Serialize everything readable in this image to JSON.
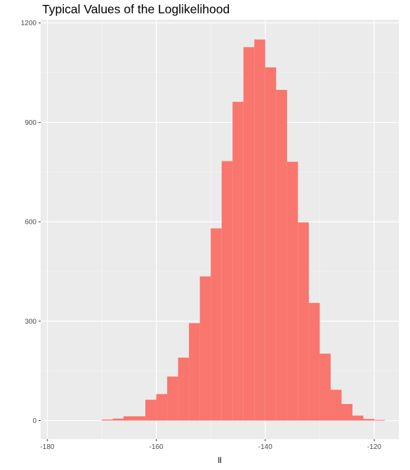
{
  "chart_data": {
    "type": "histogram",
    "title": "Typical Values of the Loglikelihood",
    "xlabel": "ll",
    "ylabel": "",
    "xlim": [
      -181.2,
      -115.5
    ],
    "ylim": [
      -56,
      1210
    ],
    "x_ticks": [
      -180,
      -160,
      -140,
      -120
    ],
    "x_tick_labels": [
      "-180",
      "-160",
      "-140",
      "-120"
    ],
    "y_ticks": [
      0,
      300,
      600,
      900,
      1200
    ],
    "y_tick_labels": [
      "0",
      "300",
      "600",
      "900",
      "1200"
    ],
    "grid": true,
    "bin_width": 2,
    "bins": [
      {
        "x0": -170,
        "x1": -168,
        "count": 3
      },
      {
        "x0": -168,
        "x1": -166,
        "count": 6
      },
      {
        "x0": -166,
        "x1": -164,
        "count": 13
      },
      {
        "x0": -164,
        "x1": -162,
        "count": 13
      },
      {
        "x0": -162,
        "x1": -160,
        "count": 63
      },
      {
        "x0": -160,
        "x1": -158,
        "count": 80
      },
      {
        "x0": -158,
        "x1": -156,
        "count": 133
      },
      {
        "x0": -156,
        "x1": -154,
        "count": 190
      },
      {
        "x0": -154,
        "x1": -152,
        "count": 294
      },
      {
        "x0": -152,
        "x1": -150,
        "count": 435
      },
      {
        "x0": -150,
        "x1": -148,
        "count": 580
      },
      {
        "x0": -148,
        "x1": -146,
        "count": 783
      },
      {
        "x0": -146,
        "x1": -144,
        "count": 962
      },
      {
        "x0": -144,
        "x1": -142,
        "count": 1127
      },
      {
        "x0": -142,
        "x1": -140,
        "count": 1150
      },
      {
        "x0": -140,
        "x1": -138,
        "count": 1066
      },
      {
        "x0": -138,
        "x1": -136,
        "count": 998
      },
      {
        "x0": -136,
        "x1": -134,
        "count": 781
      },
      {
        "x0": -134,
        "x1": -132,
        "count": 598
      },
      {
        "x0": -132,
        "x1": -130,
        "count": 355
      },
      {
        "x0": -130,
        "x1": -128,
        "count": 202
      },
      {
        "x0": -128,
        "x1": -126,
        "count": 93
      },
      {
        "x0": -126,
        "x1": -124,
        "count": 50
      },
      {
        "x0": -124,
        "x1": -122,
        "count": 15
      },
      {
        "x0": -122,
        "x1": -120,
        "count": 5
      },
      {
        "x0": -120,
        "x1": -118,
        "count": 2
      }
    ],
    "colors": {
      "bar": "#F8766D",
      "panel_background": "#EBEBEB",
      "grid_major": "#FFFFFF",
      "grid_minor": "#F5F5F5",
      "tick_text": "#4D4D4D",
      "tick_mark": "#333333"
    }
  }
}
